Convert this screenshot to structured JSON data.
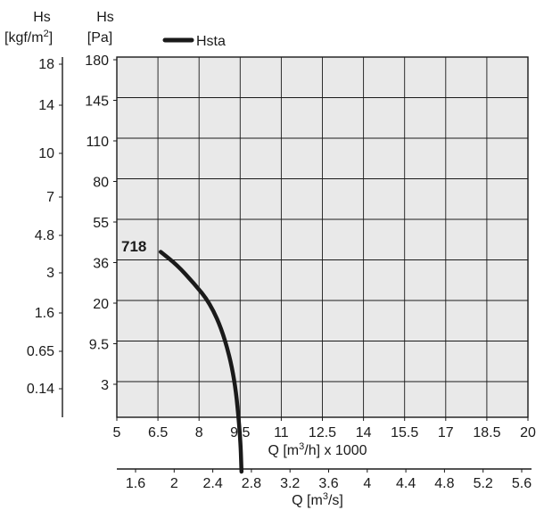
{
  "chart_data": {
    "type": "line",
    "legend": {
      "series_name": "Hsta",
      "placement": "top-left"
    },
    "axes": {
      "y_left_outer": {
        "title_line1": "Hs",
        "title_line2": "[kgf/m",
        "title_sup": "2",
        "title_close": "]",
        "ticks": [
          "18",
          "14",
          "10",
          "7",
          "4.8",
          "3",
          "1.6",
          "0.65",
          "0.14"
        ]
      },
      "y_left_inner": {
        "title_line1": "Hs",
        "title_line2": "[Pa]",
        "ticks": [
          "180",
          "145",
          "110",
          "80",
          "55",
          "36",
          "20",
          "9.5",
          "3"
        ]
      },
      "x_primary": {
        "label_prefix": "Q [m",
        "label_sup": "3",
        "label_suffix": "/h] x 1000",
        "ticks": [
          "5",
          "6.5",
          "8",
          "9.5",
          "11",
          "12.5",
          "14",
          "15.5",
          "17",
          "18.5",
          "20"
        ],
        "range": [
          5,
          20
        ]
      },
      "x_secondary": {
        "label_prefix": "Q [m",
        "label_sup": "3",
        "label_suffix": "/s]",
        "ticks": [
          "1.6",
          "2",
          "2.4",
          "2.8",
          "3.2",
          "3.6",
          "4",
          "4.4",
          "4.8",
          "5.2",
          "5.6"
        ]
      }
    },
    "grid": true,
    "series": [
      {
        "name": "Hsta",
        "model_label": "718",
        "points": [
          {
            "q": 6.6,
            "h": 41
          },
          {
            "q": 7.2,
            "h": 35
          },
          {
            "q": 7.8,
            "h": 28
          },
          {
            "q": 8.4,
            "h": 20
          },
          {
            "q": 8.9,
            "h": 12
          },
          {
            "q": 9.3,
            "h": 4
          },
          {
            "q": 9.5,
            "h": -5
          },
          {
            "q": 9.55,
            "h": -11
          }
        ]
      }
    ]
  }
}
